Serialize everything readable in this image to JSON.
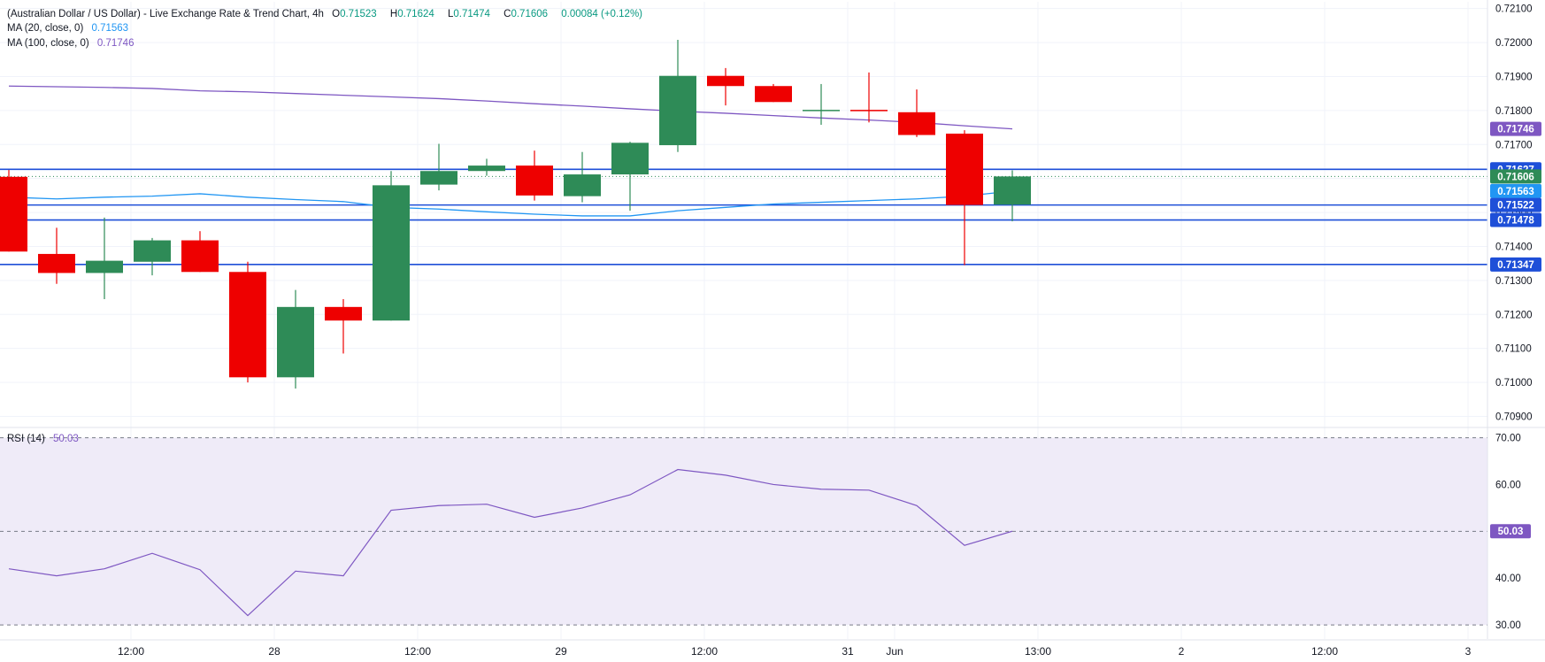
{
  "header": {
    "title": "(Australian Dollar / US Dollar) - Live Exchange Rate & Trend Chart, 4h",
    "ohlc": [
      {
        "key": "O",
        "value": "0.71523"
      },
      {
        "key": "H",
        "value": "0.71624"
      },
      {
        "key": "L",
        "value": "0.71474"
      },
      {
        "key": "C",
        "value": "0.71606"
      }
    ],
    "change": "0.00084 (+0.12%)"
  },
  "indicators": {
    "ma20": {
      "label": "MA (20, close, 0)",
      "value": "0.71563"
    },
    "ma100": {
      "label": "MA (100, close, 0)",
      "value": "0.71746"
    },
    "rsi": {
      "label": "RSI (14)",
      "value": "50.03"
    }
  },
  "colors": {
    "up": "#2e8b57",
    "down": "#ee0000",
    "ma20": "#2196f3",
    "ma100": "#7e57c2",
    "level_line": "#1e4fd8",
    "rsi_line": "#7e57c2",
    "rsi_band": "#efebf8"
  },
  "chart_data": [
    {
      "type": "candlestick",
      "title": "(Australian Dollar / US Dollar) - Live Exchange Rate & Trend Chart, 4h",
      "x_ticks": [
        "12:00",
        "28",
        "12:00",
        "29",
        "12:00",
        "31",
        "Jun",
        "13:00",
        "2",
        "12:00",
        "3"
      ],
      "ylim": [
        0.7087,
        0.7212
      ],
      "y_ticks": [
        0.709,
        0.71,
        0.711,
        0.712,
        0.713,
        0.714,
        0.715,
        0.716,
        0.717,
        0.718,
        0.719,
        0.72,
        0.721
      ],
      "grid": true,
      "candles": [
        {
          "o": 0.71605,
          "h": 0.71625,
          "l": 0.71385,
          "c": 0.71385
        },
        {
          "o": 0.71378,
          "h": 0.71455,
          "l": 0.7129,
          "c": 0.71322
        },
        {
          "o": 0.71322,
          "h": 0.71485,
          "l": 0.71245,
          "c": 0.71358
        },
        {
          "o": 0.71355,
          "h": 0.71425,
          "l": 0.71315,
          "c": 0.71418
        },
        {
          "o": 0.71418,
          "h": 0.71445,
          "l": 0.71325,
          "c": 0.71325
        },
        {
          "o": 0.71325,
          "h": 0.71355,
          "l": 0.71,
          "c": 0.71015
        },
        {
          "o": 0.71015,
          "h": 0.71272,
          "l": 0.70982,
          "c": 0.71222
        },
        {
          "o": 0.71222,
          "h": 0.71245,
          "l": 0.71085,
          "c": 0.71182
        },
        {
          "o": 0.71182,
          "h": 0.71622,
          "l": 0.71182,
          "c": 0.7158
        },
        {
          "o": 0.71582,
          "h": 0.71702,
          "l": 0.71565,
          "c": 0.71622
        },
        {
          "o": 0.71622,
          "h": 0.71658,
          "l": 0.71608,
          "c": 0.71638
        },
        {
          "o": 0.71638,
          "h": 0.71682,
          "l": 0.71535,
          "c": 0.7155
        },
        {
          "o": 0.71548,
          "h": 0.71678,
          "l": 0.7153,
          "c": 0.71612
        },
        {
          "o": 0.71612,
          "h": 0.71708,
          "l": 0.71505,
          "c": 0.71705
        },
        {
          "o": 0.71698,
          "h": 0.72008,
          "l": 0.71678,
          "c": 0.71902
        },
        {
          "o": 0.71902,
          "h": 0.71925,
          "l": 0.71815,
          "c": 0.71872
        },
        {
          "o": 0.71872,
          "h": 0.71878,
          "l": 0.71825,
          "c": 0.71825
        },
        {
          "o": 0.71802,
          "h": 0.71878,
          "l": 0.71758,
          "c": 0.71802
        },
        {
          "o": 0.71802,
          "h": 0.71912,
          "l": 0.71765,
          "c": 0.71798
        },
        {
          "o": 0.71795,
          "h": 0.71862,
          "l": 0.71722,
          "c": 0.71728
        },
        {
          "o": 0.71732,
          "h": 0.71742,
          "l": 0.71345,
          "c": 0.71522
        },
        {
          "o": 0.71523,
          "h": 0.71624,
          "l": 0.71474,
          "c": 0.71606
        }
      ],
      "ma100": [
        0.71872,
        0.7187,
        0.71868,
        0.71865,
        0.71858,
        0.71855,
        0.7185,
        0.71845,
        0.7184,
        0.71835,
        0.71828,
        0.7182,
        0.71813,
        0.71805,
        0.71798,
        0.71792,
        0.71785,
        0.71778,
        0.71772,
        0.71765,
        0.71755,
        0.71746
      ],
      "ma20": [
        0.71545,
        0.7154,
        0.71545,
        0.71548,
        0.71555,
        0.71545,
        0.71538,
        0.71532,
        0.71515,
        0.7151,
        0.71502,
        0.71495,
        0.7149,
        0.7149,
        0.71505,
        0.71515,
        0.71525,
        0.7153,
        0.71535,
        0.7154,
        0.71548,
        0.71563
      ],
      "horizontal_levels": [
        0.71627,
        0.71522,
        0.71478,
        0.71347
      ],
      "last_price_line": 0.71606,
      "price_labels": [
        {
          "text": "0.71746",
          "value": 0.71746,
          "color": "#7e57c2"
        },
        {
          "text": "0.71627",
          "value": 0.71627,
          "color": "#1e4fd8"
        },
        {
          "text": "0.71606",
          "value": 0.71606,
          "color": "#2e8b57"
        },
        {
          "text": "0.71563",
          "value": 0.71563,
          "color": "#2196f3"
        },
        {
          "text": "0.71522",
          "value": 0.71522,
          "color": "#1e4fd8"
        },
        {
          "text": "0.71478",
          "value": 0.71478,
          "color": "#1e4fd8"
        },
        {
          "text": "0.71347",
          "value": 0.71347,
          "color": "#1e4fd8"
        }
      ]
    },
    {
      "type": "line",
      "title": "RSI (14)",
      "ylim": [
        27,
        72
      ],
      "y_ticks": [
        30,
        40,
        50,
        60,
        70
      ],
      "dashed_levels": [
        30,
        50,
        70
      ],
      "band": [
        30,
        70
      ],
      "values": [
        42,
        40.5,
        42,
        45.3,
        41.8,
        32,
        41.5,
        40.5,
        54.5,
        55.5,
        55.8,
        53,
        55,
        57.8,
        63.2,
        62,
        60,
        59,
        58.8,
        55.5,
        47,
        50.03
      ],
      "current_label": "50.03"
    }
  ]
}
